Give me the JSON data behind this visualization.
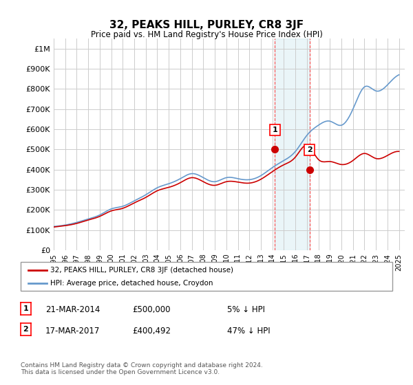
{
  "title": "32, PEAKS HILL, PURLEY, CR8 3JF",
  "subtitle": "Price paid vs. HM Land Registry's House Price Index (HPI)",
  "ylabel_ticks": [
    "£0",
    "£100K",
    "£200K",
    "£300K",
    "£400K",
    "£500K",
    "£600K",
    "£700K",
    "£800K",
    "£900K",
    "£1M"
  ],
  "ytick_values": [
    0,
    100000,
    200000,
    300000,
    400000,
    500000,
    600000,
    700000,
    800000,
    900000,
    1000000
  ],
  "ylim": [
    0,
    1050000
  ],
  "xlim_start": 1995.0,
  "xlim_end": 2025.5,
  "xtick_years": [
    1995,
    1996,
    1997,
    1998,
    1999,
    2000,
    2001,
    2002,
    2003,
    2004,
    2005,
    2006,
    2007,
    2008,
    2009,
    2010,
    2011,
    2012,
    2013,
    2014,
    2015,
    2016,
    2017,
    2018,
    2019,
    2020,
    2021,
    2022,
    2023,
    2024,
    2025
  ],
  "marker1_x": 2014.22,
  "marker1_y": 500000,
  "marker2_x": 2017.22,
  "marker2_y": 400492,
  "marker1_label": "1",
  "marker2_label": "2",
  "vline1_x": 2014.22,
  "vline2_x": 2017.22,
  "shade_color": "#add8e6",
  "shade_alpha": 0.25,
  "legend_line1_label": "32, PEAKS HILL, PURLEY, CR8 3JF (detached house)",
  "legend_line2_label": "HPI: Average price, detached house, Croydon",
  "table_row1": [
    "1",
    "21-MAR-2014",
    "£500,000",
    "5% ↓ HPI"
  ],
  "table_row2": [
    "2",
    "17-MAR-2017",
    "£400,492",
    "47% ↓ HPI"
  ],
  "footnote": "Contains HM Land Registry data © Crown copyright and database right 2024.\nThis data is licensed under the Open Government Licence v3.0.",
  "line_red_color": "#cc0000",
  "line_blue_color": "#6699cc",
  "marker_red_color": "#cc0000",
  "grid_color": "#cccccc",
  "background_color": "#ffffff"
}
